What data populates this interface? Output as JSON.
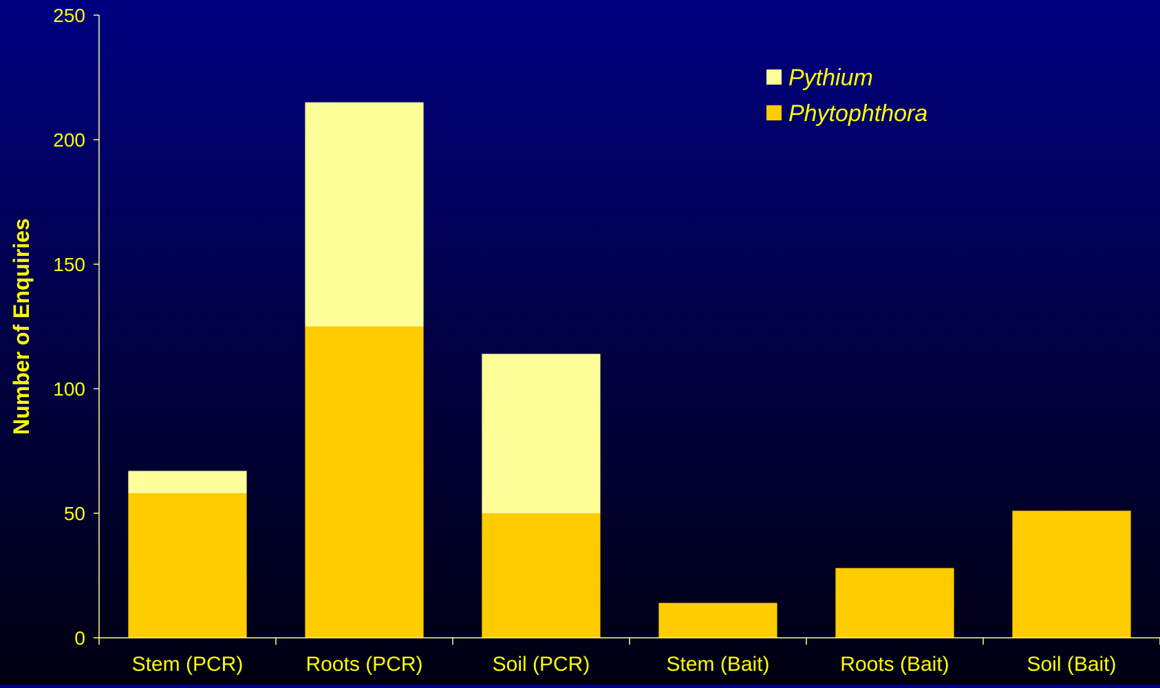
{
  "chart_data": {
    "type": "bar",
    "stacked": true,
    "categories": [
      "Stem (PCR)",
      "Roots (PCR)",
      "Soil (PCR)",
      "Stem (Bait)",
      "Roots (Bait)",
      "Soil (Bait)"
    ],
    "series": [
      {
        "name": "Phytophthora",
        "values": [
          58,
          125,
          50,
          14,
          28,
          51
        ],
        "color": "#ffcc00"
      },
      {
        "name": "Pythium",
        "values": [
          9,
          90,
          64,
          0,
          0,
          0
        ],
        "color": "#ffff99"
      }
    ],
    "legend_order": [
      "Pythium",
      "Phytophthora"
    ],
    "title": "",
    "xlabel": "",
    "ylabel": "Number of Enquiries",
    "ylim": [
      0,
      250
    ],
    "yticks": [
      0,
      50,
      100,
      150,
      200,
      250
    ],
    "grid": false,
    "legend_position": "top-right",
    "colors": {
      "text": "#ffff00",
      "axis": "#ffff99",
      "background_top": "#000080",
      "background_bottom": "#000010"
    }
  }
}
